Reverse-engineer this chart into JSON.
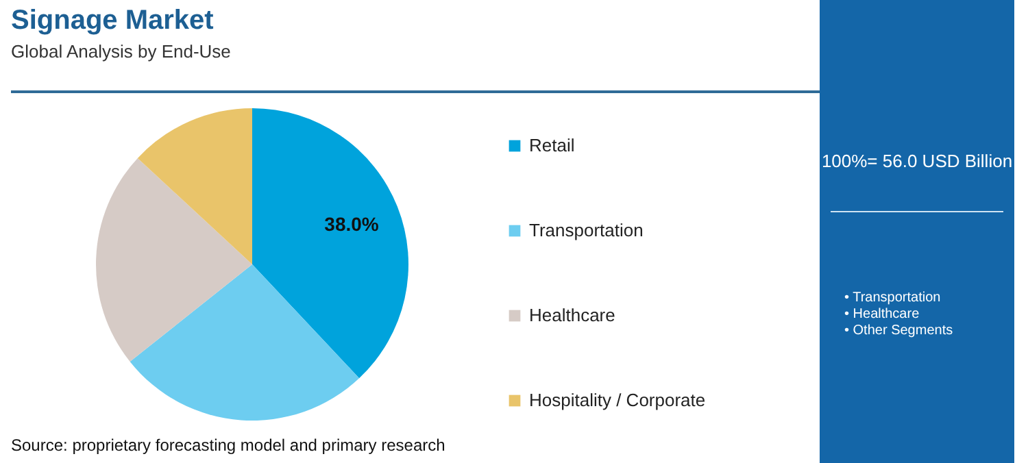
{
  "chart_data": {
    "type": "pie",
    "title": "Signage Market",
    "subtitle": "Global Analysis by End-Use",
    "categories": [
      "Retail",
      "Transportation",
      "Healthcare",
      "Hospitality / Corporate"
    ],
    "values": [
      38,
      26.3,
      22.6,
      13.1
    ],
    "colors": [
      "#00a3dc",
      "#6dcdf0",
      "#d6cbc6",
      "#e9c46a"
    ],
    "value_labels": [
      "38.0%",
      null,
      null,
      null
    ],
    "legend": "right",
    "annotations": [
      "100%= 56.0 USD Billion",
      "• Transportation",
      "• Healthcare",
      "• Other Segments",
      "Source: proprietary forecasting model and primary research"
    ]
  }
}
